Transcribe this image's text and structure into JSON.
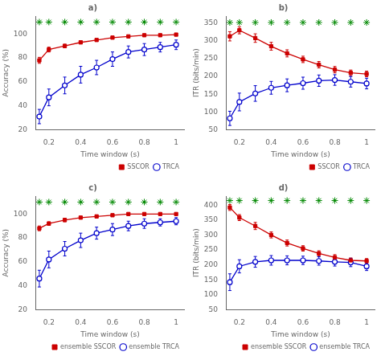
{
  "chart_data": [
    {
      "type": "line",
      "title": "a)",
      "xlabel": "Time window (s)",
      "ylabel": "Accuracy (%)",
      "x": [
        0.14,
        0.2,
        0.3,
        0.4,
        0.5,
        0.6,
        0.7,
        0.8,
        0.9,
        1.0
      ],
      "xlim": [
        0.12,
        1.05
      ],
      "xticks": [
        0.2,
        0.4,
        0.6,
        0.8,
        1.0
      ],
      "ylim": [
        20,
        115
      ],
      "yticks": [
        20,
        40,
        60,
        80,
        100
      ],
      "grid": false,
      "legend": "lower right",
      "series": [
        {
          "name": "SSCOR",
          "color": "#CC0000",
          "marker": "square",
          "values": [
            78,
            87,
            90,
            93,
            95,
            97,
            98,
            99,
            99,
            99.5
          ],
          "errors": [
            2.5,
            2,
            1.5,
            1.2,
            1,
            0.9,
            0.8,
            0.8,
            0.7,
            0.5
          ]
        },
        {
          "name": "TRCA",
          "color": "#0000CC",
          "marker": "open_circle",
          "values": [
            31,
            47,
            57,
            66,
            72,
            79,
            85,
            87,
            89,
            91
          ],
          "errors": [
            6,
            7,
            7,
            7,
            6,
            6,
            5,
            5,
            4,
            4
          ]
        },
        {
          "type": "scatter",
          "color": "#008800",
          "marker": "star",
          "values": [
            110,
            110,
            110,
            110,
            110,
            110,
            110,
            110,
            110,
            110
          ]
        }
      ]
    },
    {
      "type": "line",
      "title": "b)",
      "xlabel": "Time window (s)",
      "ylabel": "ITR (bits/min)",
      "x": [
        0.14,
        0.2,
        0.3,
        0.4,
        0.5,
        0.6,
        0.7,
        0.8,
        0.9,
        1.0
      ],
      "xlim": [
        0.12,
        1.05
      ],
      "xticks": [
        0.2,
        0.4,
        0.6,
        0.8,
        1.0
      ],
      "ylim": [
        50,
        370
      ],
      "yticks": [
        50,
        100,
        150,
        200,
        250,
        300,
        350
      ],
      "grid": false,
      "legend": "lower right",
      "series": [
        {
          "name": "SSCOR",
          "color": "#CC0000",
          "marker": "square",
          "values": [
            313,
            330,
            308,
            285,
            265,
            248,
            233,
            219,
            210,
            207
          ],
          "errors": [
            13,
            10,
            12,
            11,
            10,
            9,
            9,
            9,
            8,
            8
          ]
        },
        {
          "name": "TRCA",
          "color": "#0000CC",
          "marker": "open_circle",
          "values": [
            82,
            128,
            152,
            168,
            175,
            181,
            188,
            190,
            185,
            180
          ],
          "errors": [
            20,
            25,
            22,
            18,
            18,
            17,
            16,
            15,
            15,
            15
          ]
        },
        {
          "type": "scatter",
          "color": "#008800",
          "marker": "star",
          "values": [
            352,
            352,
            352,
            352,
            352,
            352,
            352,
            352,
            352,
            352
          ]
        }
      ]
    },
    {
      "type": "line",
      "title": "c)",
      "xlabel": "Time window (s)",
      "ylabel": "Accuracy (%)",
      "x": [
        0.14,
        0.2,
        0.3,
        0.4,
        0.5,
        0.6,
        0.7,
        0.8,
        0.9,
        1.0
      ],
      "xlim": [
        0.12,
        1.05
      ],
      "xticks": [
        0.2,
        0.4,
        0.6,
        0.8,
        1.0
      ],
      "ylim": [
        20,
        115
      ],
      "yticks": [
        20,
        40,
        60,
        80,
        100
      ],
      "grid": false,
      "legend": "lower right",
      "series": [
        {
          "name": "ensemble SSCOR",
          "color": "#CC0000",
          "marker": "square",
          "values": [
            88,
            92,
            95,
            97,
            98,
            99,
            100,
            100,
            100,
            100
          ],
          "errors": [
            2,
            1.5,
            1.5,
            1,
            1,
            0.8,
            0.5,
            0.5,
            0.5,
            0.5
          ]
        },
        {
          "name": "ensemble TRCA",
          "color": "#0000CC",
          "marker": "open_circle",
          "values": [
            46,
            62,
            71,
            78,
            84,
            87,
            90,
            92,
            93,
            94
          ],
          "errors": [
            7,
            7,
            6,
            6,
            5,
            5,
            4,
            4,
            3,
            3
          ]
        },
        {
          "type": "scatter",
          "color": "#008800",
          "marker": "star",
          "values": [
            110,
            110,
            110,
            110,
            110,
            110,
            110,
            110,
            110,
            110
          ]
        }
      ]
    },
    {
      "type": "line",
      "title": "d)",
      "xlabel": "Time window (s)",
      "ylabel": "ITR (bits/min)",
      "x": [
        0.14,
        0.2,
        0.3,
        0.4,
        0.5,
        0.6,
        0.7,
        0.8,
        0.9,
        1.0
      ],
      "xlim": [
        0.12,
        1.05
      ],
      "xticks": [
        0.2,
        0.4,
        0.6,
        0.8,
        1.0
      ],
      "ylim": [
        50,
        430
      ],
      "yticks": [
        50,
        100,
        150,
        200,
        250,
        300,
        350,
        400
      ],
      "grid": false,
      "legend": "lower right",
      "series": [
        {
          "name": "ensemble SSCOR",
          "color": "#CC0000",
          "marker": "square",
          "values": [
            392,
            358,
            330,
            300,
            273,
            255,
            238,
            225,
            215,
            213
          ],
          "errors": [
            10,
            10,
            12,
            10,
            10,
            9,
            9,
            9,
            8,
            8
          ]
        },
        {
          "name": "ensemble TRCA",
          "color": "#0000CC",
          "marker": "open_circle",
          "values": [
            142,
            195,
            210,
            215,
            215,
            215,
            213,
            210,
            208,
            195
          ],
          "errors": [
            28,
            22,
            18,
            16,
            15,
            14,
            14,
            14,
            14,
            14
          ]
        },
        {
          "type": "scatter",
          "color": "#008800",
          "marker": "star",
          "values": [
            415,
            415,
            415,
            415,
            415,
            415,
            415,
            415,
            415,
            415
          ]
        }
      ]
    }
  ]
}
